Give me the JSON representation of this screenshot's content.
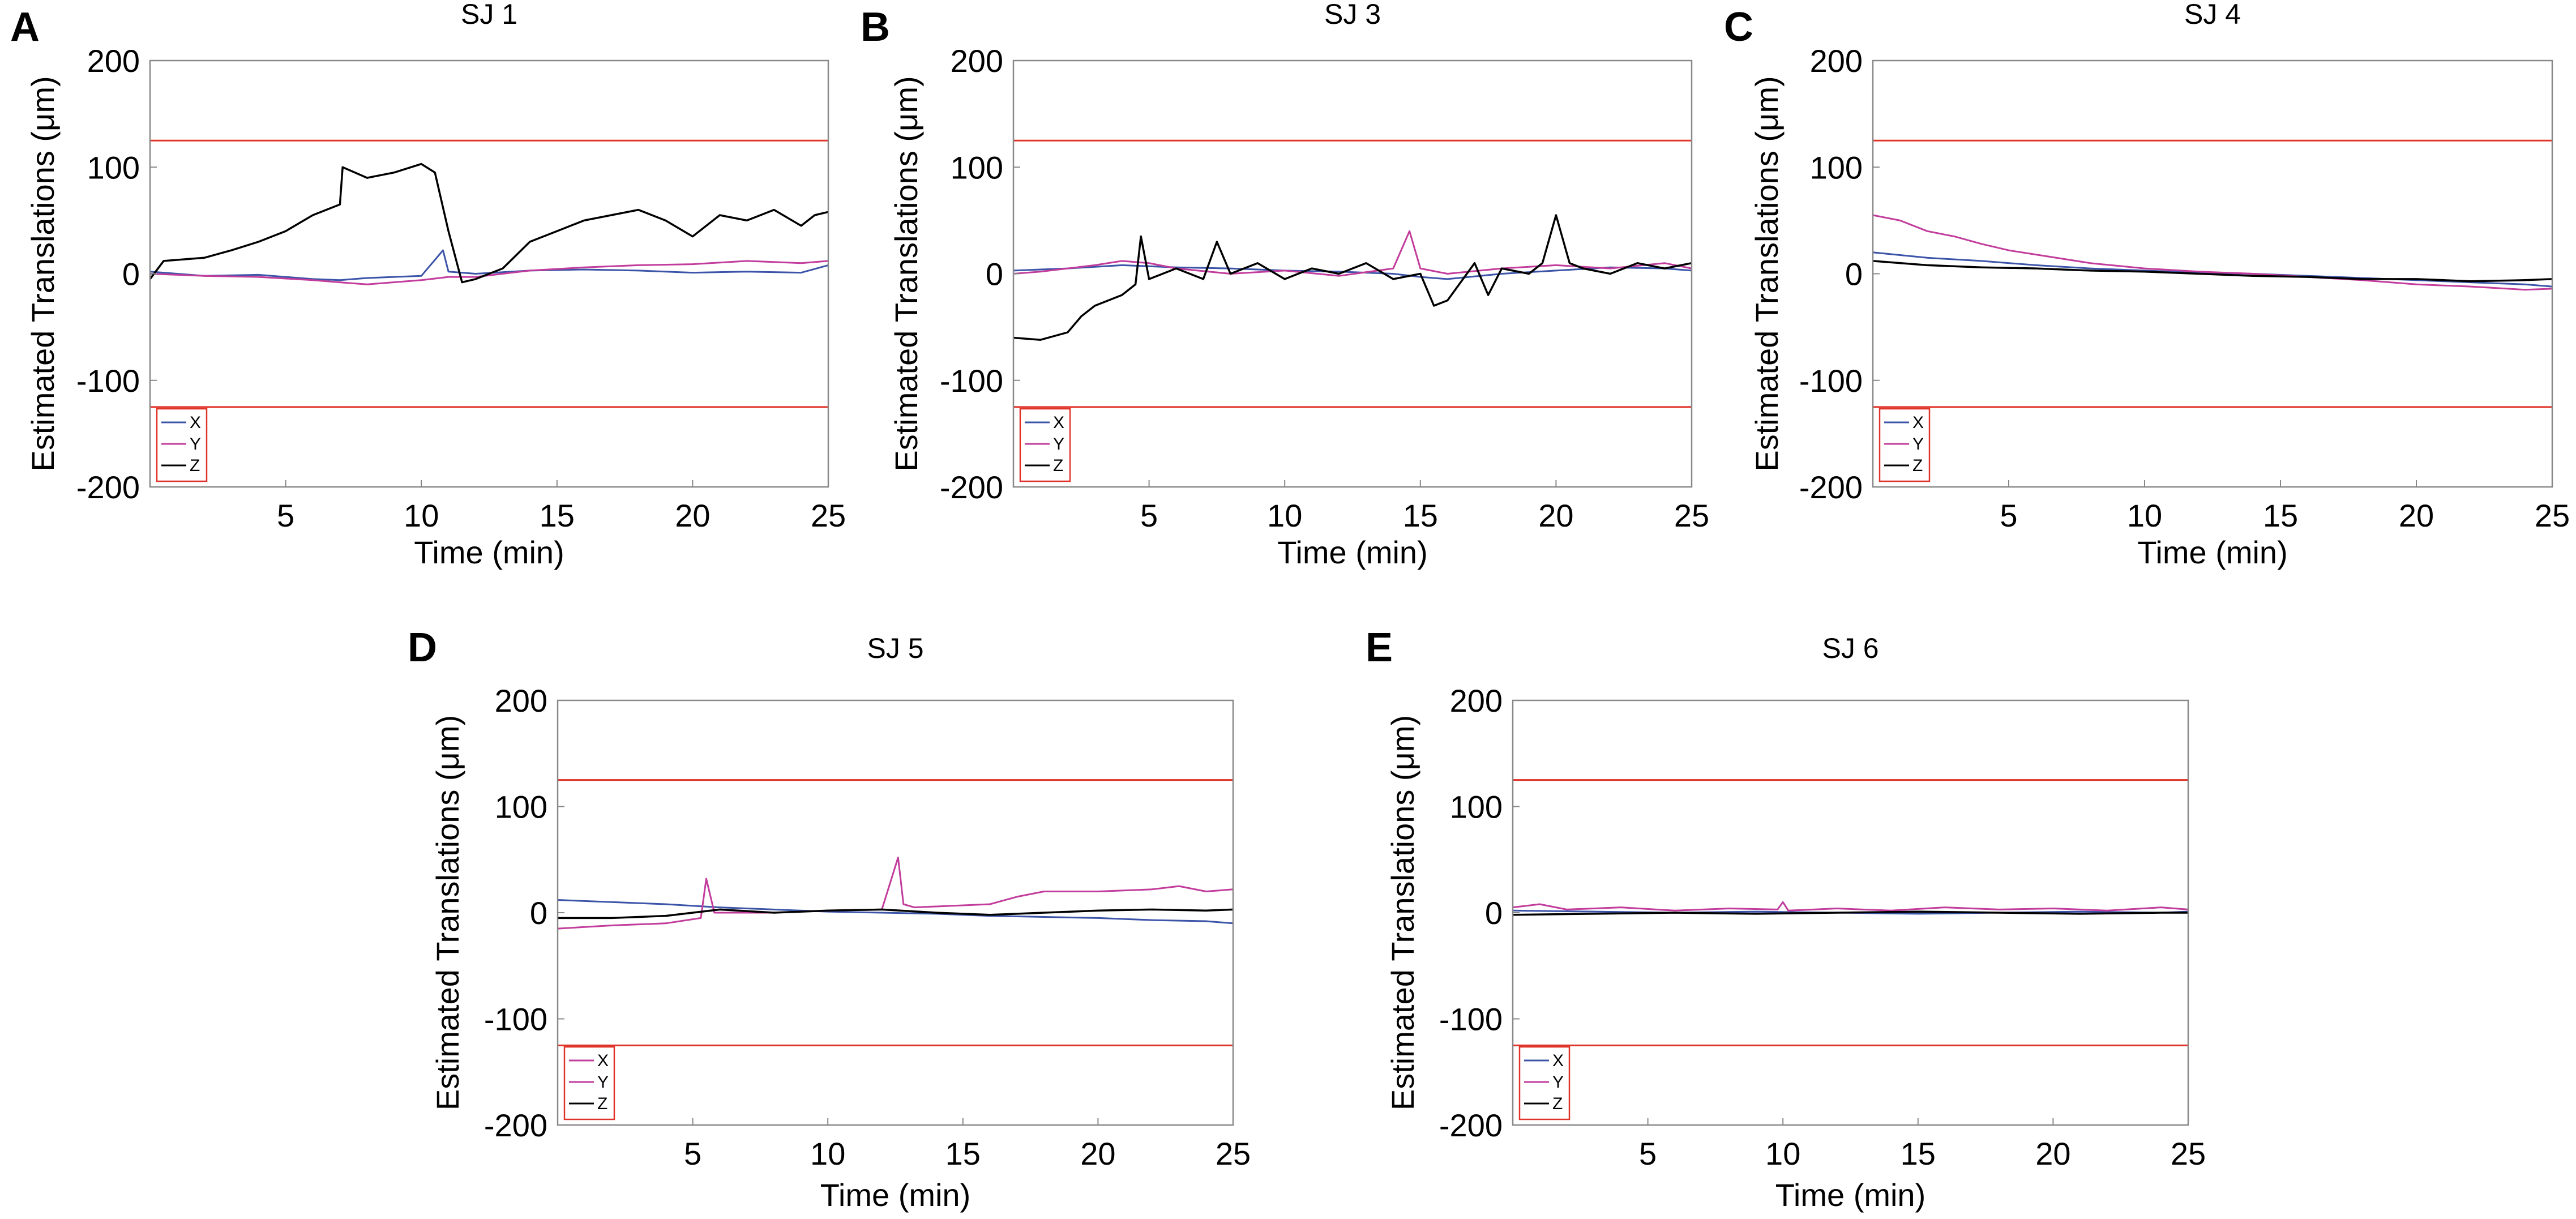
{
  "colors": {
    "X": "#3c54a8",
    "Y": "#c23c9c",
    "Z": "#000000",
    "threshold": "#e03228",
    "axis": "#888888",
    "legend_border": "#e03228"
  },
  "chart_data": [
    {
      "type": "line",
      "letter": "A",
      "title": "SJ 1",
      "xlabel": "Time (min)",
      "ylabel": "Estimated Translations (μm)",
      "xlim": [
        0,
        25
      ],
      "ylim": [
        -200,
        200
      ],
      "xticks": [
        "5",
        "10",
        "15",
        "20",
        "25"
      ],
      "yticks": [
        "200",
        "100",
        "0",
        "-100",
        "-200"
      ],
      "thresholds": [
        125,
        -125
      ],
      "legend_labels": [
        "X",
        "Y",
        "Z"
      ],
      "legend_position": "bottom-left",
      "series": [
        {
          "name": "X",
          "x": [
            0,
            2,
            4,
            6,
            7,
            8,
            10,
            10.8,
            11,
            12,
            14,
            16,
            18,
            20,
            22,
            24,
            25
          ],
          "y": [
            2,
            -2,
            -1,
            -5,
            -6,
            -4,
            -2,
            22,
            2,
            0,
            3,
            4,
            3,
            1,
            2,
            1,
            8
          ]
        },
        {
          "name": "Y",
          "x": [
            0,
            2,
            4,
            6,
            7,
            8,
            10,
            11,
            12,
            14,
            16,
            18,
            20,
            22,
            24,
            25
          ],
          "y": [
            0,
            -2,
            -3,
            -6,
            -8,
            -10,
            -6,
            -3,
            -3,
            3,
            6,
            8,
            9,
            12,
            10,
            12
          ]
        },
        {
          "name": "Z",
          "x": [
            0,
            0.5,
            2,
            3,
            4,
            5,
            6,
            7,
            7.1,
            8,
            9,
            10,
            10.5,
            11,
            11.5,
            12,
            13,
            14,
            15,
            16,
            17,
            18,
            19,
            20,
            21,
            22,
            23,
            24,
            24.5,
            25
          ],
          "y": [
            -5,
            12,
            15,
            22,
            30,
            40,
            55,
            65,
            100,
            90,
            95,
            103,
            95,
            40,
            -8,
            -5,
            5,
            30,
            40,
            50,
            55,
            60,
            50,
            35,
            55,
            50,
            60,
            45,
            55,
            58
          ]
        }
      ]
    },
    {
      "type": "line",
      "letter": "B",
      "title": "SJ 3",
      "xlabel": "Time (min)",
      "ylabel": "Estimated Translations (μm)",
      "xlim": [
        0,
        25
      ],
      "ylim": [
        -200,
        200
      ],
      "xticks": [
        "5",
        "10",
        "15",
        "20",
        "25"
      ],
      "yticks": [
        "200",
        "100",
        "0",
        "-100",
        "-200"
      ],
      "thresholds": [
        125,
        -125
      ],
      "legend_labels": [
        "X",
        "Y",
        "Z"
      ],
      "legend_position": "bottom-left",
      "series": [
        {
          "name": "X",
          "x": [
            0,
            2,
            4,
            6,
            8,
            10,
            12,
            14,
            15,
            16,
            18,
            20,
            22,
            24,
            25
          ],
          "y": [
            3,
            5,
            8,
            6,
            5,
            3,
            2,
            0,
            -3,
            -5,
            0,
            3,
            6,
            5,
            3
          ]
        },
        {
          "name": "Y",
          "x": [
            0,
            1,
            2,
            3,
            4,
            5,
            6,
            8,
            10,
            12,
            14,
            14.6,
            15,
            16,
            18,
            20,
            22,
            24,
            25
          ],
          "y": [
            0,
            2,
            5,
            8,
            12,
            10,
            5,
            0,
            3,
            -2,
            5,
            40,
            5,
            0,
            5,
            8,
            5,
            10,
            5
          ]
        },
        {
          "name": "Z",
          "x": [
            0,
            1,
            2,
            2.5,
            3,
            4,
            4.5,
            4.7,
            5,
            6,
            7,
            7.5,
            8,
            9,
            10,
            11,
            12,
            13,
            14,
            15,
            15.5,
            16,
            17,
            17.5,
            18,
            19,
            19.5,
            20,
            20.5,
            21,
            22,
            23,
            24,
            25
          ],
          "y": [
            -60,
            -62,
            -55,
            -40,
            -30,
            -20,
            -10,
            35,
            -5,
            5,
            -5,
            30,
            0,
            10,
            -5,
            5,
            0,
            10,
            -5,
            0,
            -30,
            -25,
            10,
            -20,
            5,
            0,
            10,
            55,
            10,
            5,
            0,
            10,
            5,
            10
          ]
        }
      ]
    },
    {
      "type": "line",
      "letter": "C",
      "title": "SJ 4",
      "xlabel": "Time (min)",
      "ylabel": "Estimated Translations (μm)",
      "xlim": [
        0,
        25
      ],
      "ylim": [
        -200,
        200
      ],
      "xticks": [
        "5",
        "10",
        "15",
        "20",
        "25"
      ],
      "yticks": [
        "200",
        "100",
        "0",
        "-100",
        "-200"
      ],
      "thresholds": [
        125,
        -125
      ],
      "legend_labels": [
        "X",
        "Y",
        "Z"
      ],
      "legend_position": "bottom-left",
      "series": [
        {
          "name": "X",
          "x": [
            0,
            2,
            4,
            6,
            8,
            10,
            12,
            14,
            16,
            18,
            20,
            22,
            24,
            25
          ],
          "y": [
            20,
            15,
            12,
            8,
            5,
            3,
            1,
            0,
            -2,
            -4,
            -6,
            -8,
            -10,
            -12
          ]
        },
        {
          "name": "Y",
          "x": [
            0,
            1,
            2,
            3,
            4,
            5,
            6,
            8,
            10,
            12,
            14,
            16,
            18,
            20,
            22,
            24,
            25
          ],
          "y": [
            55,
            50,
            40,
            35,
            28,
            22,
            18,
            10,
            5,
            2,
            0,
            -3,
            -6,
            -10,
            -12,
            -15,
            -14
          ]
        },
        {
          "name": "Z",
          "x": [
            0,
            2,
            4,
            6,
            8,
            10,
            12,
            14,
            16,
            18,
            20,
            22,
            24,
            25
          ],
          "y": [
            12,
            8,
            6,
            5,
            3,
            2,
            0,
            -2,
            -3,
            -5,
            -5,
            -7,
            -6,
            -5
          ]
        }
      ]
    },
    {
      "type": "line",
      "letter": "D",
      "title": "SJ 5",
      "xlabel": "Time (min)",
      "ylabel": "Estimated Translations (μm)",
      "xlim": [
        0,
        25
      ],
      "ylim": [
        -200,
        200
      ],
      "xticks": [
        "5",
        "10",
        "15",
        "20",
        "25"
      ],
      "yticks": [
        "200",
        "100",
        "0",
        "-100",
        "-200"
      ],
      "thresholds": [
        125,
        -125
      ],
      "legend_labels": [
        "X",
        "Y",
        "Z"
      ],
      "legend_position": "bottom-left",
      "series": [
        {
          "name": "X",
          "x": [
            0,
            2,
            4,
            6,
            8,
            10,
            12,
            14,
            16,
            18,
            20,
            22,
            24,
            25
          ],
          "y": [
            12,
            10,
            8,
            5,
            3,
            1,
            0,
            -1,
            -3,
            -4,
            -5,
            -7,
            -8,
            -10
          ]
        },
        {
          "name": "Y",
          "x": [
            0,
            2,
            4,
            5.3,
            5.5,
            5.8,
            8,
            10,
            12,
            12.6,
            12.8,
            13.2,
            16,
            17,
            18,
            20,
            22,
            23,
            24,
            25
          ],
          "y": [
            -15,
            -12,
            -10,
            -5,
            32,
            0,
            0,
            2,
            3,
            52,
            8,
            5,
            8,
            15,
            20,
            20,
            22,
            25,
            20,
            22
          ]
        },
        {
          "name": "Z",
          "x": [
            0,
            2,
            4,
            6,
            8,
            10,
            12,
            14,
            16,
            18,
            20,
            22,
            24,
            25
          ],
          "y": [
            -5,
            -5,
            -3,
            3,
            0,
            2,
            3,
            0,
            -2,
            0,
            2,
            3,
            2,
            3
          ]
        }
      ]
    },
    {
      "type": "line",
      "letter": "E",
      "title": "SJ 6",
      "xlabel": "Time (min)",
      "ylabel": "Estimated Translations (μm)",
      "xlim": [
        0,
        25
      ],
      "ylim": [
        -200,
        200
      ],
      "xticks": [
        "5",
        "10",
        "15",
        "20",
        "25"
      ],
      "yticks": [
        "200",
        "100",
        "0",
        "-100",
        "-200"
      ],
      "thresholds": [
        125,
        -125
      ],
      "legend_labels": [
        "X",
        "Y",
        "Z"
      ],
      "legend_position": "bottom-left",
      "series": [
        {
          "name": "X",
          "x": [
            0,
            3,
            6,
            9,
            12,
            15,
            18,
            21,
            24,
            25
          ],
          "y": [
            2,
            1,
            0,
            1,
            0,
            -1,
            0,
            1,
            0,
            1
          ]
        },
        {
          "name": "Y",
          "x": [
            0,
            1,
            2,
            4,
            6,
            8,
            9.8,
            10,
            10.2,
            12,
            14,
            16,
            18,
            20,
            22,
            24,
            25
          ],
          "y": [
            5,
            8,
            3,
            5,
            2,
            4,
            3,
            10,
            2,
            4,
            2,
            5,
            3,
            4,
            2,
            5,
            3
          ]
        },
        {
          "name": "Z",
          "x": [
            0,
            3,
            6,
            9,
            12,
            15,
            18,
            21,
            24,
            25
          ],
          "y": [
            -2,
            -1,
            0,
            -1,
            0,
            1,
            0,
            -1,
            0,
            0
          ]
        }
      ]
    }
  ]
}
